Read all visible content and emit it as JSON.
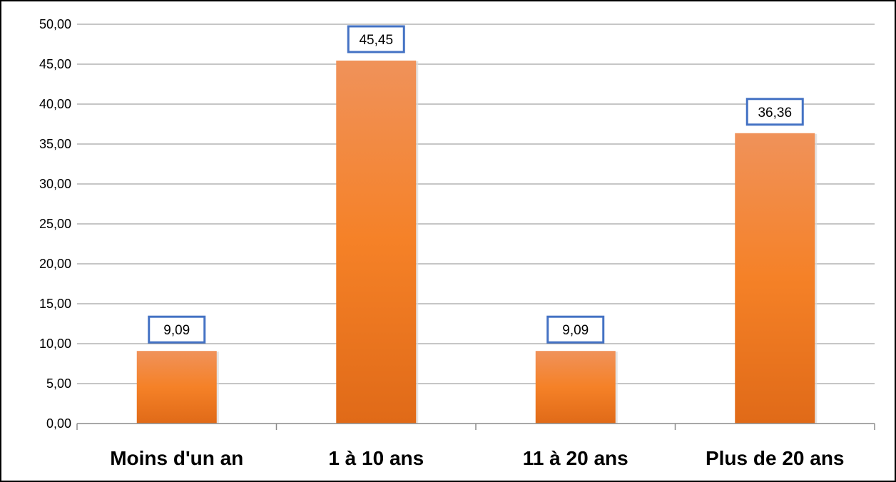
{
  "chart_data": {
    "type": "bar",
    "categories": [
      "Moins d'un an",
      "1 à 10 ans",
      "11 à 20 ans",
      "Plus de 20 ans"
    ],
    "values": [
      9.09,
      45.45,
      9.09,
      36.36
    ],
    "data_labels": [
      "9,09",
      "45,45",
      "9,09",
      "36,36"
    ],
    "ylim": [
      0,
      50
    ],
    "yticks": [
      0,
      5,
      10,
      15,
      20,
      25,
      30,
      35,
      40,
      45,
      50
    ],
    "ytick_labels": [
      "0,00",
      "5,00",
      "10,00",
      "15,00",
      "20,00",
      "25,00",
      "30,00",
      "35,00",
      "40,00",
      "45,00",
      "50,00"
    ],
    "grid": true,
    "legend": "none",
    "title": "",
    "xlabel": "",
    "ylabel": "",
    "colors": {
      "bar_top": "#f0925a",
      "bar_mid": "#f58127",
      "bar_bottom": "#e06a18",
      "label_border": "#4472c4",
      "grid": "#8c8c8c",
      "axis": "#8c8c8c"
    }
  }
}
